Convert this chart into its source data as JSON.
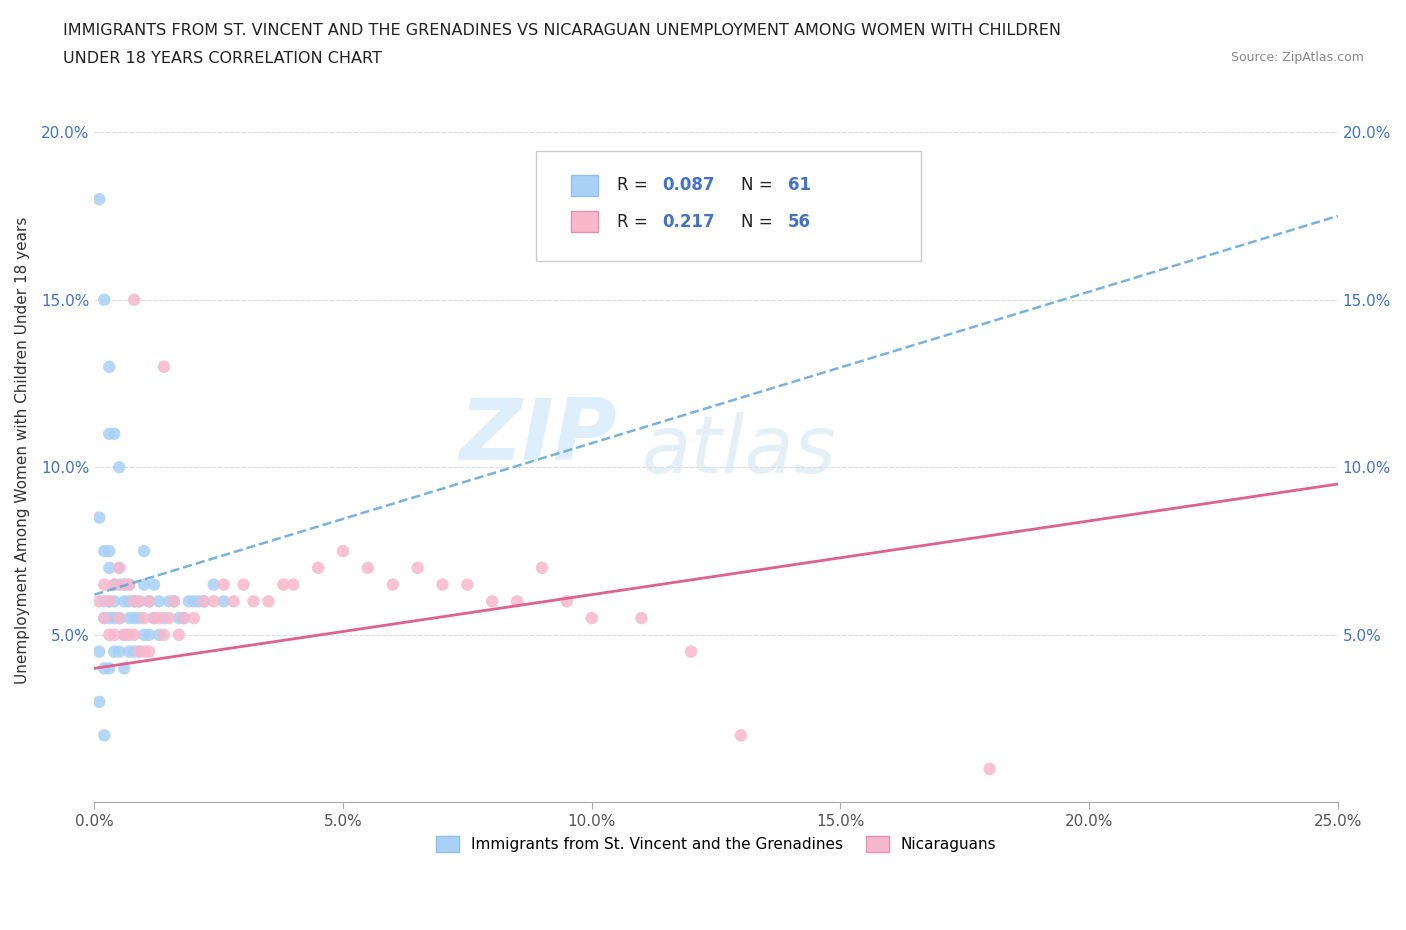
{
  "title_line1": "IMMIGRANTS FROM ST. VINCENT AND THE GRENADINES VS NICARAGUAN UNEMPLOYMENT AMONG WOMEN WITH CHILDREN",
  "title_line2": "UNDER 18 YEARS CORRELATION CHART",
  "source_text": "Source: ZipAtlas.com",
  "ylabel": "Unemployment Among Women with Children Under 18 years",
  "xlim": [
    0.0,
    0.25
  ],
  "ylim": [
    0.0,
    0.21
  ],
  "xticks": [
    0.0,
    0.05,
    0.1,
    0.15,
    0.2,
    0.25
  ],
  "xticklabels": [
    "0.0%",
    "5.0%",
    "10.0%",
    "15.0%",
    "20.0%",
    "25.0%"
  ],
  "yticks": [
    0.0,
    0.05,
    0.1,
    0.15,
    0.2
  ],
  "yticklabels": [
    "",
    "5.0%",
    "10.0%",
    "15.0%",
    "20.0%"
  ],
  "R1": 0.087,
  "N1": 61,
  "R2": 0.217,
  "N2": 56,
  "color1": "#a8d1f5",
  "color2": "#f7b8cc",
  "line1_color": "#5a9fd4",
  "line2_color": "#e06090",
  "watermark_zip": "ZIP",
  "watermark_atlas": "atlas",
  "legend1_label": "Immigrants from St. Vincent and the Grenadines",
  "legend2_label": "Nicaraguans",
  "background_color": "#ffffff",
  "grid_color": "#dddddd",
  "scatter1_x": [
    0.001,
    0.001,
    0.001,
    0.002,
    0.002,
    0.002,
    0.002,
    0.003,
    0.003,
    0.003,
    0.003,
    0.003,
    0.004,
    0.004,
    0.004,
    0.004,
    0.005,
    0.005,
    0.005,
    0.005,
    0.006,
    0.006,
    0.006,
    0.006,
    0.007,
    0.007,
    0.007,
    0.007,
    0.008,
    0.008,
    0.008,
    0.009,
    0.009,
    0.009,
    0.01,
    0.01,
    0.01,
    0.011,
    0.011,
    0.012,
    0.012,
    0.013,
    0.013,
    0.014,
    0.015,
    0.016,
    0.017,
    0.018,
    0.019,
    0.02,
    0.021,
    0.022,
    0.024,
    0.026,
    0.001,
    0.002,
    0.003,
    0.004,
    0.003,
    0.005,
    0.002
  ],
  "scatter1_y": [
    0.085,
    0.045,
    0.03,
    0.075,
    0.06,
    0.055,
    0.04,
    0.075,
    0.07,
    0.06,
    0.055,
    0.04,
    0.065,
    0.06,
    0.055,
    0.045,
    0.07,
    0.065,
    0.055,
    0.045,
    0.065,
    0.06,
    0.05,
    0.04,
    0.065,
    0.06,
    0.055,
    0.045,
    0.06,
    0.055,
    0.045,
    0.06,
    0.055,
    0.045,
    0.075,
    0.065,
    0.05,
    0.06,
    0.05,
    0.065,
    0.055,
    0.06,
    0.05,
    0.055,
    0.06,
    0.06,
    0.055,
    0.055,
    0.06,
    0.06,
    0.06,
    0.06,
    0.065,
    0.06,
    0.18,
    0.15,
    0.11,
    0.11,
    0.13,
    0.1,
    0.02
  ],
  "scatter2_x": [
    0.001,
    0.002,
    0.002,
    0.003,
    0.003,
    0.004,
    0.004,
    0.005,
    0.005,
    0.006,
    0.006,
    0.007,
    0.007,
    0.008,
    0.008,
    0.009,
    0.009,
    0.01,
    0.01,
    0.011,
    0.011,
    0.012,
    0.013,
    0.014,
    0.015,
    0.016,
    0.017,
    0.018,
    0.02,
    0.022,
    0.024,
    0.026,
    0.028,
    0.03,
    0.032,
    0.035,
    0.038,
    0.04,
    0.045,
    0.05,
    0.055,
    0.06,
    0.065,
    0.07,
    0.075,
    0.08,
    0.085,
    0.09,
    0.095,
    0.1,
    0.11,
    0.12,
    0.008,
    0.014,
    0.13,
    0.18
  ],
  "scatter2_y": [
    0.06,
    0.065,
    0.055,
    0.06,
    0.05,
    0.065,
    0.05,
    0.07,
    0.055,
    0.065,
    0.05,
    0.065,
    0.05,
    0.06,
    0.05,
    0.06,
    0.045,
    0.055,
    0.045,
    0.06,
    0.045,
    0.055,
    0.055,
    0.05,
    0.055,
    0.06,
    0.05,
    0.055,
    0.055,
    0.06,
    0.06,
    0.065,
    0.06,
    0.065,
    0.06,
    0.06,
    0.065,
    0.065,
    0.07,
    0.075,
    0.07,
    0.065,
    0.07,
    0.065,
    0.065,
    0.06,
    0.06,
    0.07,
    0.06,
    0.055,
    0.055,
    0.045,
    0.15,
    0.13,
    0.02,
    0.01
  ]
}
